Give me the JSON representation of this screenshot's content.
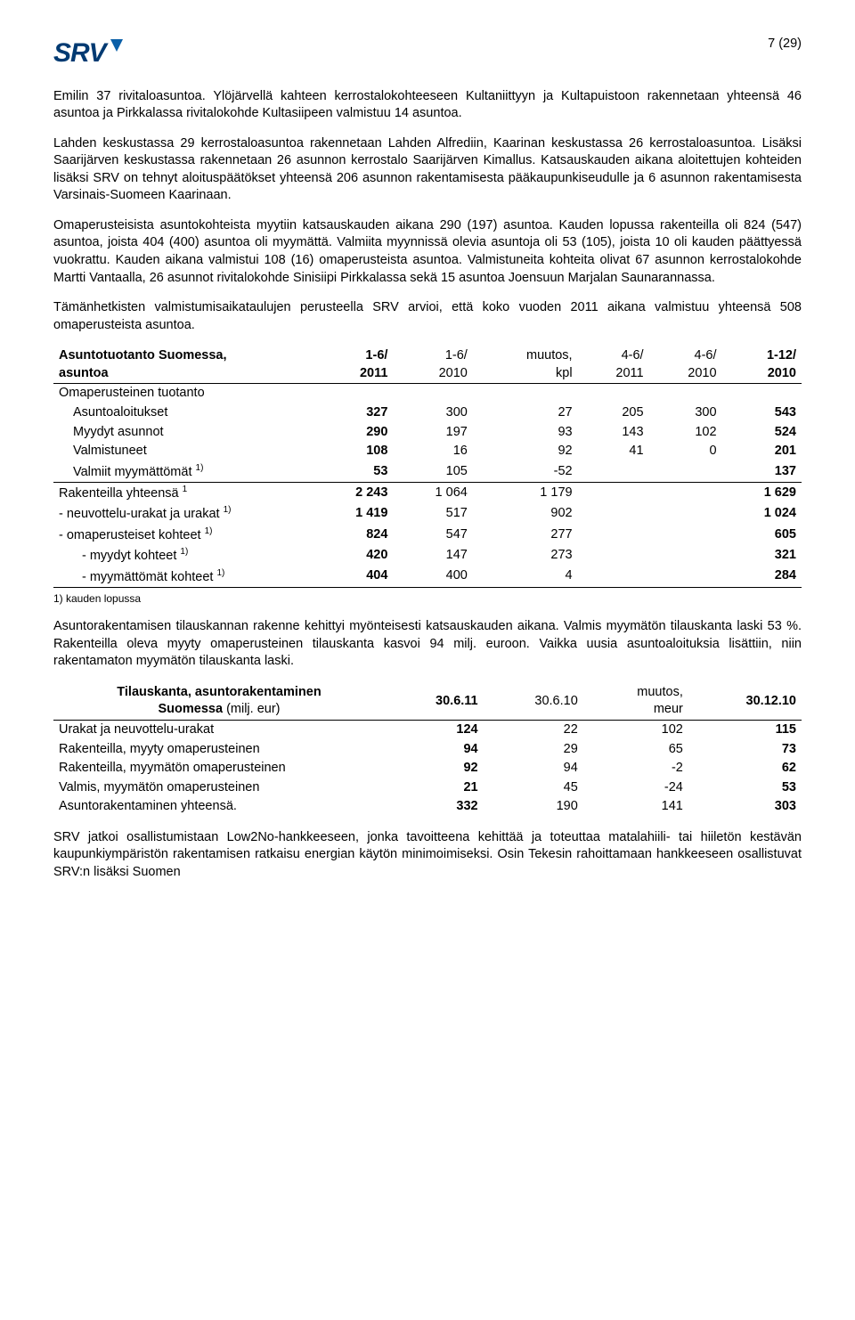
{
  "page_number": "7 (29)",
  "logo": {
    "text": "SRV",
    "color": "#003a72",
    "triangle_color": "#0a5fa8"
  },
  "paragraphs": {
    "p1": "Emilin 37 rivitaloasuntoa. Ylöjärvellä kahteen kerrostalokohteeseen Kultaniittyyn ja Kultapuistoon rakennetaan yhteensä 46 asuntoa ja Pirkkalassa rivitalokohde Kultasiipeen valmistuu 14 asuntoa.",
    "p2": "Lahden keskustassa 29 kerrostaloasuntoa rakennetaan Lahden Alfrediin, Kaarinan keskustassa 26 kerrostaloasuntoa. Lisäksi Saarijärven keskustassa rakennetaan 26 asunnon kerrostalo Saarijärven Kimallus. Katsauskauden aikana aloitettujen kohteiden lisäksi SRV on tehnyt aloituspäätökset yhteensä 206 asunnon rakentamisesta pääkaupunkiseudulle ja 6 asunnon rakentamisesta Varsinais-Suomeen Kaarinaan.",
    "p3": "Omaperusteisista asuntokohteista myytiin katsauskauden aikana 290 (197) asuntoa. Kauden lopussa rakenteilla oli 824 (547) asuntoa, joista 404 (400) asuntoa oli myymättä. Valmiita myynnissä olevia asuntoja oli 53 (105), joista 10 oli kauden päättyessä vuokrattu. Kauden aikana valmistui 108 (16) omaperusteista asuntoa. Valmistuneita kohteita olivat 67 asunnon kerrostalokohde Martti Vantaalla, 26 asunnot rivitalokohde Sinisiipi Pirkkalassa sekä 15 asuntoa Joensuun Marjalan Saunarannassa.",
    "p4": "Tämänhetkisten valmistumisaikataulujen perusteella SRV arvioi, että koko vuoden 2011 aikana valmistuu yhteensä 508 omaperusteista asuntoa.",
    "p5": "Asuntorakentamisen tilauskannan rakenne kehittyi myönteisesti katsauskauden aikana. Valmis myymätön tilauskanta laski 53 %. Rakenteilla oleva myyty omaperusteinen tilauskanta kasvoi 94 milj. euroon. Vaikka uusia asuntoaloituksia lisättiin, niin rakentamaton myymätön tilauskanta laski.",
    "p6": "SRV jatkoi osallistumistaan Low2No-hankkeeseen, jonka tavoitteena kehittää ja toteuttaa matalahiili- tai hiiletön kestävän kaupunkiympäristön rakentamisen ratkaisu energian käytön minimoimiseksi. Osin Tekesin rahoittamaan hankkeeseen osallistuvat SRV:n lisäksi Suomen"
  },
  "table1": {
    "title_l1": "Asuntotuotanto Suomessa,",
    "title_l2": "asuntoa",
    "columns": {
      "c1l1": "1-6/",
      "c1l2": "2011",
      "c2l1": "1-6/",
      "c2l2": "2010",
      "c3l1": "muutos,",
      "c3l2": "kpl",
      "c4l1": "4-6/",
      "c4l2": "2011",
      "c5l1": "4-6/",
      "c5l2": "2010",
      "c6l1": "1-12/",
      "c6l2": "2010"
    },
    "rows": [
      {
        "label": "Omaperusteinen tuotanto",
        "indent": 0
      },
      {
        "label": "Asuntoaloitukset",
        "indent": 1,
        "v": [
          "327",
          "300",
          "27",
          "205",
          "300",
          "543"
        ]
      },
      {
        "label": "Myydyt asunnot",
        "indent": 1,
        "v": [
          "290",
          "197",
          "93",
          "143",
          "102",
          "524"
        ]
      },
      {
        "label": "Valmistuneet",
        "indent": 1,
        "v": [
          "108",
          "16",
          "92",
          "41",
          "0",
          "201"
        ]
      },
      {
        "label": "Valmiit myymättömät ",
        "sup": "1)",
        "indent": 1,
        "sep": true,
        "v": [
          "53",
          "105",
          "-52",
          "",
          "",
          "137"
        ]
      },
      {
        "label": "Rakenteilla yhteensä ",
        "sup": "1",
        "indent": 0,
        "v": [
          "2 243",
          "1 064",
          "1 179",
          "",
          "",
          "1 629"
        ]
      },
      {
        "label": "- neuvottelu-urakat ja urakat ",
        "sup": "1)",
        "indent": 0,
        "v": [
          "1 419",
          "517",
          "902",
          "",
          "",
          "1 024"
        ]
      },
      {
        "label": "- omaperusteiset kohteet ",
        "sup": "1)",
        "indent": 0,
        "v": [
          "824",
          "547",
          "277",
          "",
          "",
          "605"
        ]
      },
      {
        "label": "- myydyt kohteet ",
        "sup": "1)",
        "indent": 2,
        "v": [
          "420",
          "147",
          "273",
          "",
          "",
          "321"
        ]
      },
      {
        "label": "- myymättömät kohteet ",
        "sup": "1)",
        "indent": 2,
        "sep": true,
        "v": [
          "404",
          "400",
          "4",
          "",
          "",
          "284"
        ]
      }
    ],
    "footnote": "1) kauden lopussa"
  },
  "table2": {
    "title_l1": "Tilauskanta, asuntorakentaminen",
    "title_l2": "Suomessa",
    "title_l2_paren": "(milj. eur)",
    "columns": {
      "c1": "30.6.11",
      "c2": "30.6.10",
      "c3l1": "muutos,",
      "c3l2": "meur",
      "c4": "30.12.10"
    },
    "rows": [
      {
        "label": "Urakat ja neuvottelu-urakat",
        "v": [
          "124",
          "22",
          "102",
          "115"
        ]
      },
      {
        "label": "Rakenteilla, myyty omaperusteinen",
        "v": [
          "94",
          "29",
          "65",
          "73"
        ]
      },
      {
        "label": "Rakenteilla, myymätön omaperusteinen",
        "v": [
          "92",
          "94",
          "-2",
          "62"
        ]
      },
      {
        "label": "Valmis, myymätön omaperusteinen",
        "v": [
          "21",
          "45",
          "-24",
          "53"
        ]
      },
      {
        "label": "Asuntorakentaminen yhteensä.",
        "v": [
          "332",
          "190",
          "141",
          "303"
        ]
      }
    ]
  }
}
